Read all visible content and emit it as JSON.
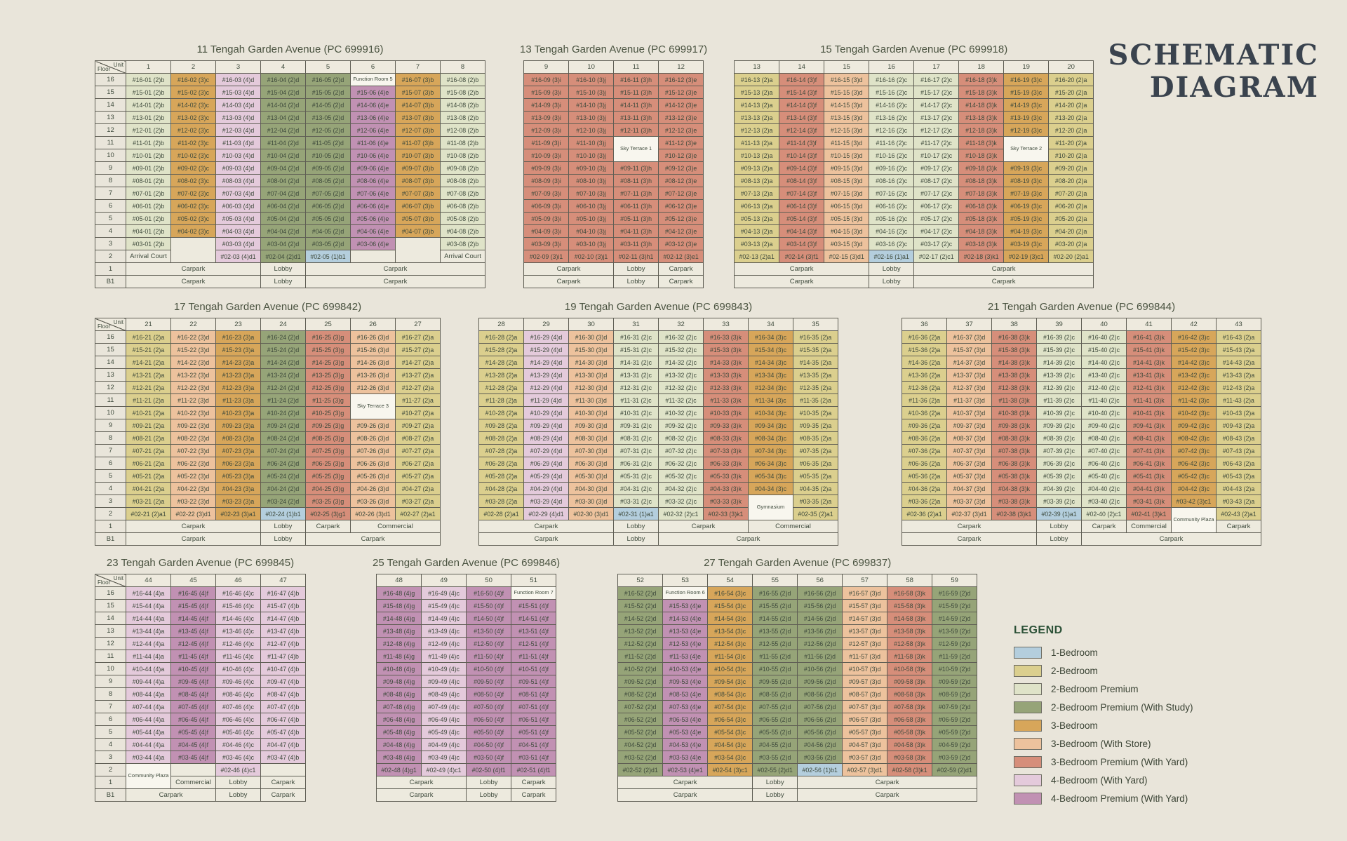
{
  "page": {
    "title_line1": "SCHEMATIC",
    "title_line2": "DIAGRAM"
  },
  "axis": {
    "floor_label": "Floor",
    "unit_label": "Unit",
    "ground": "1",
    "basement": "B1"
  },
  "labels": {
    "community_plaza": "Community Plaza"
  },
  "palette": {
    "br1": "#b4cedd",
    "br2": "#dbcf8e",
    "br2p": "#dfe3c8",
    "br2ps": "#96a478",
    "br3": "#d7a65a",
    "br3s": "#edc29d",
    "br3py": "#d68e7a",
    "br4y": "#e4cadb",
    "br4py": "#c191b3"
  },
  "legend": {
    "title": "LEGEND",
    "items": [
      {
        "key": "br1",
        "label": "1-Bedroom"
      },
      {
        "key": "br2",
        "label": "2-Bedroom"
      },
      {
        "key": "br2p",
        "label": "2-Bedroom Premium"
      },
      {
        "key": "br2ps",
        "label": "2-Bedroom Premium (With Study)"
      },
      {
        "key": "br3",
        "label": "3-Bedroom"
      },
      {
        "key": "br3s",
        "label": "3-Bedroom (With Store)"
      },
      {
        "key": "br3py",
        "label": "3-Bedroom Premium (With Yard)"
      },
      {
        "key": "br4y",
        "label": "4-Bedroom (With Yard)"
      },
      {
        "key": "br4py",
        "label": "4-Bedroom Premium (With Yard)"
      }
    ]
  },
  "buildings": [
    {
      "title": "11 Tengah Garden Avenue (PC 699916)",
      "floorCol": true,
      "cols": [
        {
          "n": "1",
          "u": "01",
          "t": "2",
          "l": "b",
          "c": "br2p",
          "f2": {
            "t": "Arrival Court"
          }
        },
        {
          "n": "2",
          "u": "02",
          "t": "3",
          "l": "c",
          "c": "br3",
          "blank": [
            [
              3,
              2
            ]
          ],
          "f2": "x"
        },
        {
          "n": "3",
          "u": "03",
          "t": "4",
          "l": "d",
          "c": "br4y"
        },
        {
          "n": "4",
          "u": "04",
          "t": "2",
          "l": "d",
          "c": "br2ps"
        },
        {
          "n": "5",
          "u": "05",
          "t": "2",
          "l": "d",
          "c": "br2ps",
          "f2": {
            "t": "#02-05 (1)b1",
            "c": "br1"
          }
        },
        {
          "n": "6",
          "u": "06",
          "t": "4",
          "l": "e",
          "c": "br4py",
          "fr": "Function Room 5",
          "blank": [
            [
              2,
              2
            ]
          ],
          "f2": "x"
        },
        {
          "n": "7",
          "u": "07",
          "t": "3",
          "l": "b",
          "c": "br3",
          "blank": [
            [
              3,
              2
            ]
          ],
          "f2": "x"
        },
        {
          "n": "8",
          "u": "08",
          "t": "2",
          "l": "b",
          "c": "br2p",
          "f2": {
            "t": "Arrival Court"
          }
        }
      ],
      "f1": [
        [
          "Carpark",
          3
        ],
        [
          "Lobby",
          1
        ],
        [
          "Carpark",
          4
        ]
      ],
      "b1": [
        [
          "Carpark",
          3
        ],
        [
          "Lobby",
          1
        ],
        [
          "Carpark",
          4
        ]
      ]
    },
    {
      "title": "13 Tengah Garden Avenue (PC 699917)",
      "floorCol": false,
      "cols": [
        {
          "n": "9",
          "u": "09",
          "t": "3",
          "l": "i",
          "c": "br3py"
        },
        {
          "n": "10",
          "u": "10",
          "t": "3",
          "l": "j",
          "c": "br3py"
        },
        {
          "n": "11",
          "u": "11",
          "t": "3",
          "l": "h",
          "c": "br3py",
          "st": [
            "Sky Terrace 1",
            11,
            10
          ]
        },
        {
          "n": "12",
          "u": "12",
          "t": "3",
          "l": "e",
          "c": "br3py"
        }
      ],
      "f1": [
        [
          "Carpark",
          2
        ],
        [
          "Lobby",
          1
        ],
        [
          "Carpark",
          1
        ]
      ],
      "b1": [
        [
          "Carpark",
          2
        ],
        [
          "Lobby",
          1
        ],
        [
          "Carpark",
          1
        ]
      ]
    },
    {
      "title": "15 Tengah Garden Avenue (PC 699918)",
      "floorCol": false,
      "cols": [
        {
          "n": "13",
          "u": "13",
          "t": "2",
          "l": "a",
          "c": "br2"
        },
        {
          "n": "14",
          "u": "14",
          "t": "3",
          "l": "f",
          "c": "br3py"
        },
        {
          "n": "15",
          "u": "15",
          "t": "3",
          "l": "d",
          "c": "br3s"
        },
        {
          "n": "16",
          "u": "16",
          "t": "2",
          "l": "c",
          "c": "br2p",
          "f2": {
            "t": "#02-16 (1)a1",
            "c": "br1"
          }
        },
        {
          "n": "17",
          "u": "17",
          "t": "2",
          "l": "c",
          "c": "br2p"
        },
        {
          "n": "18",
          "u": "18",
          "t": "3",
          "l": "k",
          "c": "br3py"
        },
        {
          "n": "19",
          "u": "19",
          "t": "3",
          "l": "c",
          "c": "br3",
          "st": [
            "Sky Terrace 2",
            11,
            10
          ]
        },
        {
          "n": "20",
          "u": "20",
          "t": "2",
          "l": "a",
          "c": "br2"
        }
      ],
      "f1": [
        [
          "Carpark",
          3
        ],
        [
          "Lobby",
          1
        ],
        [
          "Carpark",
          4
        ]
      ],
      "b1": [
        [
          "Carpark",
          3
        ],
        [
          "Lobby",
          1
        ],
        [
          "Carpark",
          4
        ]
      ]
    },
    {
      "title": "17 Tengah Garden Avenue (PC 699842)",
      "floorCol": true,
      "cols": [
        {
          "n": "21",
          "u": "21",
          "t": "2",
          "l": "a",
          "c": "br2"
        },
        {
          "n": "22",
          "u": "22",
          "t": "3",
          "l": "d",
          "c": "br3s"
        },
        {
          "n": "23",
          "u": "23",
          "t": "3",
          "l": "a",
          "c": "br3"
        },
        {
          "n": "24",
          "u": "24",
          "t": "2",
          "l": "d",
          "c": "br2ps",
          "f2": {
            "t": "#02-24 (1)b1",
            "c": "br1"
          }
        },
        {
          "n": "25",
          "u": "25",
          "t": "3",
          "l": "g",
          "c": "br3py"
        },
        {
          "n": "26",
          "u": "26",
          "t": "3",
          "l": "d",
          "c": "br3s",
          "st": [
            "Sky Terrace 3",
            11,
            10
          ]
        },
        {
          "n": "27",
          "u": "27",
          "t": "2",
          "l": "a",
          "c": "br2"
        }
      ],
      "f1": [
        [
          "Carpark",
          3
        ],
        [
          "Lobby",
          1
        ],
        [
          "Carpark",
          1
        ],
        [
          "Commercial",
          2
        ]
      ],
      "b1": [
        [
          "Carpark",
          3
        ],
        [
          "Lobby",
          1
        ],
        [
          "Carpark",
          3
        ]
      ]
    },
    {
      "title": "19 Tengah Garden Avenue (PC 699843)",
      "floorCol": false,
      "cols": [
        {
          "n": "28",
          "u": "28",
          "t": "2",
          "l": "a",
          "c": "br2"
        },
        {
          "n": "29",
          "u": "29",
          "t": "4",
          "l": "d",
          "c": "br4y"
        },
        {
          "n": "30",
          "u": "30",
          "t": "3",
          "l": "d",
          "c": "br3s"
        },
        {
          "n": "31",
          "u": "31",
          "t": "2",
          "l": "c",
          "c": "br2p",
          "f2": {
            "t": "#02-31 (1)a1",
            "c": "br1"
          }
        },
        {
          "n": "32",
          "u": "32",
          "t": "2",
          "l": "c",
          "c": "br2p"
        },
        {
          "n": "33",
          "u": "33",
          "t": "3",
          "l": "k",
          "c": "br3py"
        },
        {
          "n": "34",
          "u": "34",
          "t": "3",
          "l": "c",
          "c": "br3",
          "st": [
            "Gymnasium",
            3,
            2
          ],
          "f2": "x"
        },
        {
          "n": "35",
          "u": "35",
          "t": "2",
          "l": "a",
          "c": "br2"
        }
      ],
      "f1": [
        [
          "Carpark",
          3
        ],
        [
          "Lobby",
          1
        ],
        [
          "Carpark",
          2
        ],
        [
          "Commercial",
          2
        ]
      ],
      "b1": [
        [
          "Carpark",
          3
        ],
        [
          "Lobby",
          1
        ],
        [
          "Carpark",
          4
        ]
      ]
    },
    {
      "title": "21 Tengah Garden Avenue (PC 699844)",
      "floorCol": false,
      "cols": [
        {
          "n": "36",
          "u": "36",
          "t": "2",
          "l": "a",
          "c": "br2"
        },
        {
          "n": "37",
          "u": "37",
          "t": "3",
          "l": "d",
          "c": "br3s"
        },
        {
          "n": "38",
          "u": "38",
          "t": "3",
          "l": "k",
          "c": "br3py"
        },
        {
          "n": "39",
          "u": "39",
          "t": "2",
          "l": "c",
          "c": "br2p",
          "f2": {
            "t": "#02-39 (1)a1",
            "c": "br1"
          }
        },
        {
          "n": "40",
          "u": "40",
          "t": "2",
          "l": "c",
          "c": "br2p"
        },
        {
          "n": "41",
          "u": "41",
          "t": "3",
          "l": "k",
          "c": "br3py"
        },
        {
          "n": "42",
          "u": "42",
          "t": "3",
          "l": "c",
          "c": "br3",
          "f3s": true,
          "f2": "cp"
        },
        {
          "n": "43",
          "u": "43",
          "t": "2",
          "l": "a",
          "c": "br2"
        }
      ],
      "f1": [
        [
          "Carpark",
          3
        ],
        [
          "Lobby",
          1
        ],
        [
          "Carpark",
          1
        ],
        [
          "Commercial",
          1
        ],
        [
          "#skip",
          1
        ],
        [
          "Carpark",
          1
        ]
      ],
      "b1": [
        [
          "Carpark",
          3
        ],
        [
          "Lobby",
          1
        ],
        [
          "Carpark",
          4
        ]
      ]
    },
    {
      "title": "23 Tengah Garden Avenue (PC 699845)",
      "floorCol": true,
      "cols": [
        {
          "n": "44",
          "u": "44",
          "t": "4",
          "l": "a",
          "c": "br4y",
          "f2": "cp"
        },
        {
          "n": "45",
          "u": "45",
          "t": "4",
          "l": "f",
          "c": "br4py",
          "blank": [
            [
              2,
              2
            ]
          ],
          "f2": "x"
        },
        {
          "n": "46",
          "u": "46",
          "t": "4",
          "l": "c",
          "c": "br4y"
        },
        {
          "n": "47",
          "u": "47",
          "t": "4",
          "l": "b",
          "c": "br4y",
          "blank": [
            [
              2,
              2
            ]
          ],
          "f2": "x"
        }
      ],
      "f1": [
        [
          "#skip",
          1
        ],
        [
          "Commercial",
          1
        ],
        [
          "Lobby",
          1
        ],
        [
          "Carpark",
          1
        ]
      ],
      "b1": [
        [
          "Carpark",
          2
        ],
        [
          "Lobby",
          1
        ],
        [
          "Carpark",
          1
        ]
      ]
    },
    {
      "title": "25 Tengah Garden Avenue (PC 699846)",
      "floorCol": false,
      "cols": [
        {
          "n": "48",
          "u": "48",
          "t": "4",
          "l": "g",
          "c": "br4py"
        },
        {
          "n": "49",
          "u": "49",
          "t": "4",
          "l": "c",
          "c": "br4y"
        },
        {
          "n": "50",
          "u": "50",
          "t": "4",
          "l": "f",
          "c": "br4py"
        },
        {
          "n": "51",
          "u": "51",
          "t": "4",
          "l": "f",
          "c": "br4py",
          "fr": "Function Room 7"
        }
      ],
      "f1": [
        [
          "Carpark",
          2
        ],
        [
          "Lobby",
          1
        ],
        [
          "Carpark",
          1
        ]
      ],
      "b1": [
        [
          "Carpark",
          2
        ],
        [
          "Lobby",
          1
        ],
        [
          "Carpark",
          1
        ]
      ]
    },
    {
      "title": "27 Tengah Garden Avenue (PC 699837)",
      "floorCol": false,
      "cols": [
        {
          "n": "52",
          "u": "52",
          "t": "2",
          "l": "d",
          "c": "br2ps"
        },
        {
          "n": "53",
          "u": "53",
          "t": "4",
          "l": "e",
          "c": "br4py",
          "fr": "Function Room 6"
        },
        {
          "n": "54",
          "u": "54",
          "t": "3",
          "l": "c",
          "c": "br3"
        },
        {
          "n": "55",
          "u": "55",
          "t": "2",
          "l": "d",
          "c": "br2ps"
        },
        {
          "n": "56",
          "u": "56",
          "t": "2",
          "l": "d",
          "c": "br2ps",
          "f2": {
            "t": "#02-56 (1)b1",
            "c": "br1"
          }
        },
        {
          "n": "57",
          "u": "57",
          "t": "3",
          "l": "d",
          "c": "br3s"
        },
        {
          "n": "58",
          "u": "58",
          "t": "3",
          "l": "k",
          "c": "br3py"
        },
        {
          "n": "59",
          "u": "59",
          "t": "2",
          "l": "d",
          "c": "br2ps"
        }
      ],
      "f1": [
        [
          "Carpark",
          3
        ],
        [
          "Lobby",
          1
        ],
        [
          "Carpark",
          4
        ]
      ],
      "b1": [
        [
          "Carpark",
          3
        ],
        [
          "Lobby",
          1
        ],
        [
          "Carpark",
          4
        ]
      ]
    }
  ]
}
